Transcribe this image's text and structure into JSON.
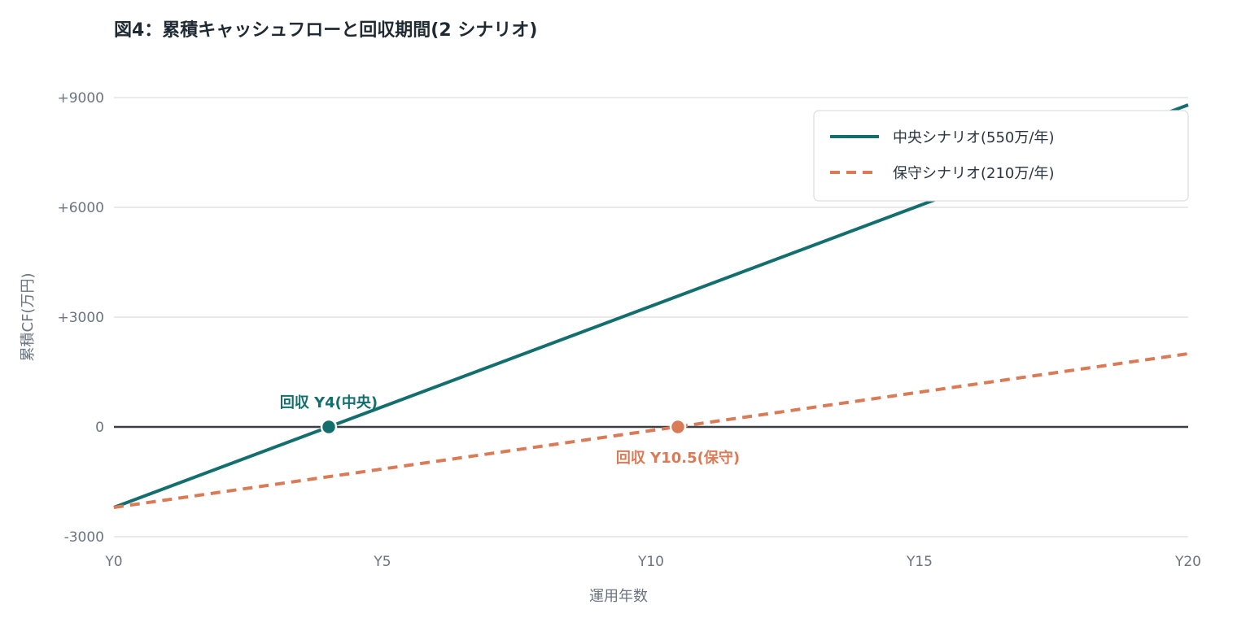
{
  "chart_data": {
    "type": "line",
    "title": "図4：累積キャッシュフローと回収期間(2 シナリオ)",
    "xlabel": "運用年数",
    "ylabel": "累積CF(万円)",
    "xlim": [
      0,
      20
    ],
    "ylim": [
      -3000,
      9000
    ],
    "x_ticks": [
      {
        "value": 0,
        "label": "Y0"
      },
      {
        "value": 5,
        "label": "Y5"
      },
      {
        "value": 10,
        "label": "Y10"
      },
      {
        "value": 15,
        "label": "Y15"
      },
      {
        "value": 20,
        "label": "Y20"
      }
    ],
    "y_ticks": [
      {
        "value": 9000,
        "label": "+9000"
      },
      {
        "value": 6000,
        "label": "+6000"
      },
      {
        "value": 3000,
        "label": "+3000"
      },
      {
        "value": 0,
        "label": "0"
      },
      {
        "value": -3000,
        "label": "-3000"
      }
    ],
    "grid": true,
    "legend_position": "top-right",
    "series": [
      {
        "name": "中央シナリオ(550万/年)",
        "color": "#136e6e",
        "style": "solid",
        "x": [
          0,
          20
        ],
        "y": [
          -2200,
          8800
        ]
      },
      {
        "name": "保守シナリオ(210万/年)",
        "color": "#d97b57",
        "style": "dashed",
        "x": [
          0,
          20
        ],
        "y": [
          -2200,
          2000
        ]
      }
    ],
    "annotations": [
      {
        "text": "回収 Y4(中央)",
        "x": 4,
        "y": 0,
        "color": "#136e6e",
        "placement": "above"
      },
      {
        "text": "回収 Y10.5(保守)",
        "x": 10.5,
        "y": 0,
        "color": "#d97b57",
        "placement": "below"
      }
    ]
  }
}
